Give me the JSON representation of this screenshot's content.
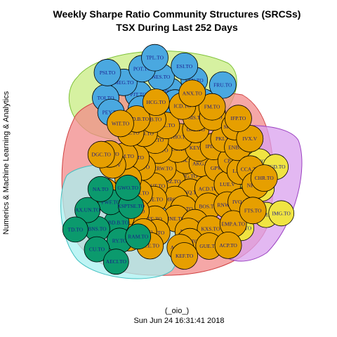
{
  "title": {
    "line1": "Weekly Sharpe Ratio Community Structures (SRCSs)",
    "line2": "TSX During Last 252 Days"
  },
  "ylabel": "Numerics & Machine Learning & Analytics",
  "footer": {
    "line1": "(_oio_)",
    "line2": "Sun Jun 24 16:31:41 2018"
  },
  "colors": {
    "blue": "#4aa8e0",
    "orange": "#e69f00",
    "green": "#0b9a6d",
    "yellow": "#f0e442",
    "hull_green": "#c8ec82",
    "hull_red": "#f28a8a",
    "hull_cyan": "#a8f0f0",
    "hull_purple": "#d9a0ee"
  },
  "communities": [
    {
      "id": "blue",
      "nodes": [
        "CPG.TO",
        "PJT.TO",
        "NES.TO",
        "DTE.TO",
        "MEG.TO",
        "ESN.TO",
        "CNS.TO",
        "POT.TO",
        "MBC.TO",
        "TOI.TO",
        "ESI.TO",
        "ALA.TO",
        "PSI.TO",
        "FRU.TO",
        "PEY.TO",
        "TPL.TO",
        "X.TO"
      ]
    },
    {
      "id": "orange",
      "nodes": [
        "NG.TO",
        "FSZ.TO",
        "WJA.TO",
        "CNQ.TO",
        "CRW.TO",
        "AKG.TO",
        "MRG.TO",
        "ACO.TO",
        "ACD.TO",
        "ROUT.TO",
        "KEY.TO",
        "EFN.TO",
        "AVX.TO",
        "GPV.V",
        "CNE.TO",
        "THO.TO",
        "BOS.TO",
        "LB.TO",
        "IPL.TO",
        "INE.TO",
        "KIV.TO",
        "LUE.V",
        "VBN.TO",
        "GSB.TO",
        "ODC.TO",
        "AD.TO",
        "CP.TO",
        "FE.TO",
        "SSL.TO",
        "RNW.TO",
        "NSU.TO",
        "PKI.TO",
        "NO.TO",
        "LUN.TO",
        "LX.TO",
        "LTB.TO",
        "SIS.TO",
        "KXS.TO",
        "PLM.TO",
        "ENB.TO",
        "ITP.TO",
        "CPB.TO",
        "IVQ.TO",
        "TR0.TO",
        "TXG.TO",
        "MX.TO",
        "TSE.TO",
        "CCA.TO",
        "PBH.TO",
        "ICD.TO",
        "EMP.A.TO",
        "MDV.V",
        "SRV.B.TO",
        "AQN.TO",
        "DDD.B.TO",
        "NPI.TO",
        "MIC.TO",
        "FM.TO",
        "GUE.TO",
        "RBA.TO",
        "IVX.V",
        "BCE.TO",
        "HCG.TO",
        "FTS.TO",
        "DOL.TO",
        "IFP.TO",
        "KEF.TO",
        "WIT.TO",
        "CHR.TO",
        "TPX.TO",
        "ANX.TO",
        "ACP.TO",
        "DGC.TO"
      ]
    },
    {
      "id": "green",
      "nodes": [
        "BBD.B.TO",
        "BNS.TO",
        "PWF.TO",
        "RY.TO",
        "AX.UN.TO",
        "XSPTSE.TO",
        "CU.TO",
        "NA.TO",
        "RAM.TO",
        "TD.TO",
        "GWO.TO",
        "AECI.TO"
      ]
    },
    {
      "id": "yellow",
      "nodes": [
        "ABX.TO",
        "ACQ.TO",
        "K.TO",
        "AEM.TO",
        "YRI.TO",
        "NGD.TO",
        "CWB.TO",
        "OGC.V",
        "IMG.TO",
        "LYD.TO"
      ]
    }
  ]
}
